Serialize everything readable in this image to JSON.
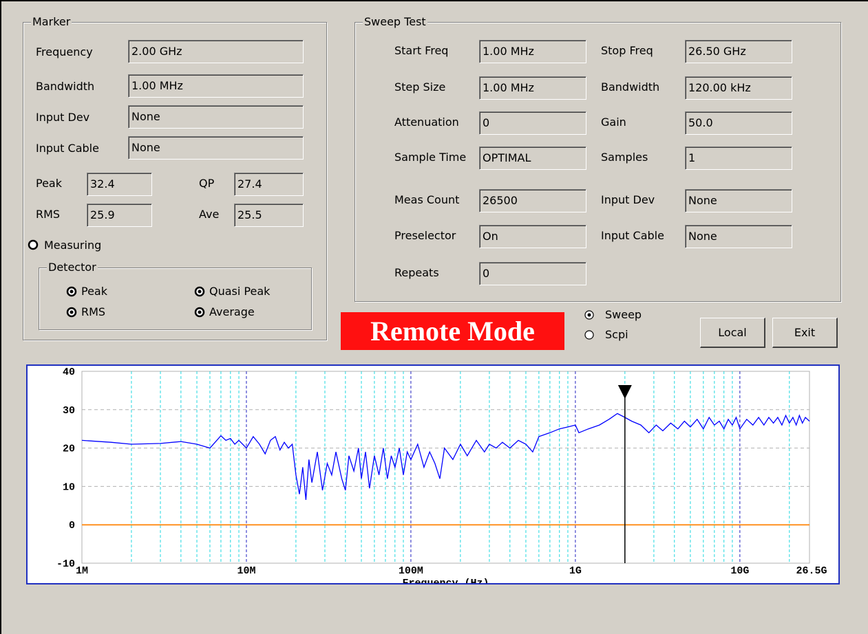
{
  "marker": {
    "title": "Marker",
    "fields": [
      {
        "label": "Frequency",
        "value": "2.00 GHz"
      },
      {
        "label": "Bandwidth",
        "value": "1.00 MHz"
      },
      {
        "label": "Input Dev",
        "value": "None"
      },
      {
        "label": "Input Cable",
        "value": "None"
      }
    ],
    "readings": [
      {
        "label": "Peak",
        "value": "32.4"
      },
      {
        "label": "QP",
        "value": "27.4"
      },
      {
        "label": "RMS",
        "value": "25.9"
      },
      {
        "label": "Ave",
        "value": "25.5"
      }
    ],
    "measuring": "Measuring",
    "detector": {
      "title": "Detector",
      "options": [
        "Peak",
        "Quasi Peak",
        "RMS",
        "Average"
      ]
    }
  },
  "sweep_test": {
    "title": "Sweep Test",
    "left": [
      {
        "label": "Start Freq",
        "value": "1.00 MHz"
      },
      {
        "label": "Step Size",
        "value": "1.00 MHz"
      },
      {
        "label": "Attenuation",
        "value": "0"
      },
      {
        "label": "Sample Time",
        "value": "OPTIMAL"
      },
      {
        "label": "Meas Count",
        "value": "26500"
      },
      {
        "label": "Preselector",
        "value": "On"
      },
      {
        "label": "Repeats",
        "value": "0"
      }
    ],
    "right": [
      {
        "label": "Stop Freq",
        "value": "26.50 GHz"
      },
      {
        "label": "Bandwidth",
        "value": "120.00 kHz"
      },
      {
        "label": "Gain",
        "value": "50.0"
      },
      {
        "label": "Samples",
        "value": "1"
      },
      {
        "label": "Input Dev",
        "value": "None"
      },
      {
        "label": "Input Cable",
        "value": "None"
      }
    ]
  },
  "remote_mode": "Remote Mode",
  "mode_options": [
    {
      "label": "Sweep",
      "selected": true
    },
    {
      "label": "Scpi",
      "selected": false
    }
  ],
  "buttons": [
    "Local",
    "Exit"
  ],
  "chart_data": {
    "type": "line",
    "xlabel": "Frequency (Hz)",
    "xscale": "log",
    "xlim": [
      1000000,
      26500000000
    ],
    "ylim": [
      -10,
      40
    ],
    "yticks": [
      -10,
      0,
      10,
      20,
      30,
      40
    ],
    "xticks": [
      {
        "value": 1000000,
        "label": "1M"
      },
      {
        "value": 10000000,
        "label": "10M"
      },
      {
        "value": 100000000,
        "label": "100M"
      },
      {
        "value": 1000000000,
        "label": "1G"
      },
      {
        "value": 10000000000,
        "label": "10G"
      },
      {
        "value": 26500000000,
        "label": "26.5G"
      }
    ],
    "x_minor_grid": [
      2000000,
      3000000,
      4000000,
      5000000,
      6000000,
      7000000,
      8000000,
      9000000,
      20000000,
      30000000,
      40000000,
      50000000,
      60000000,
      70000000,
      80000000,
      90000000,
      200000000,
      300000000,
      400000000,
      500000000,
      600000000,
      700000000,
      800000000,
      900000000,
      2000000000,
      3000000000,
      4000000000,
      5000000000,
      6000000000,
      7000000000,
      8000000000,
      9000000000,
      20000000000
    ],
    "grid": true,
    "major_grid_color": "#2020c0",
    "minor_grid_color": "#20d8e0",
    "reference_line": {
      "value": 0,
      "color": "#ff9020"
    },
    "marker_x": 2000000000,
    "color": "#0000ff",
    "x": [
      1000000,
      1500000,
      2000000,
      3000000,
      4000000,
      5000000,
      6000000,
      7000000,
      7500000,
      8000000,
      8500000,
      9000000,
      10000000,
      11000000,
      12000000,
      13000000,
      14000000,
      15000000,
      16000000,
      17000000,
      18000000,
      19000000,
      20000000,
      21000000,
      22000000,
      23000000,
      24000000,
      25000000,
      27000000,
      29000000,
      31000000,
      33000000,
      35000000,
      38000000,
      40000000,
      42000000,
      45000000,
      48000000,
      50000000,
      53000000,
      56000000,
      60000000,
      64000000,
      68000000,
      72000000,
      76000000,
      80000000,
      85000000,
      90000000,
      95000000,
      100000000,
      110000000,
      120000000,
      130000000,
      140000000,
      150000000,
      160000000,
      180000000,
      200000000,
      220000000,
      250000000,
      280000000,
      300000000,
      330000000,
      360000000,
      400000000,
      450000000,
      500000000,
      550000000,
      600000000,
      700000000,
      800000000,
      900000000,
      1000000000,
      1050000000,
      1200000000,
      1400000000,
      1600000000,
      1800000000,
      2000000000,
      2200000000,
      2500000000,
      2800000000,
      3100000000,
      3400000000,
      3800000000,
      4200000000,
      4600000000,
      5000000000,
      5500000000,
      6000000000,
      6500000000,
      7000000000,
      7500000000,
      8000000000,
      8500000000,
      9000000000,
      9500000000,
      10000000000,
      11000000000,
      12000000000,
      13000000000,
      14000000000,
      15000000000,
      16000000000,
      17000000000,
      18000000000,
      19000000000,
      20000000000,
      21000000000,
      22000000000,
      23000000000,
      24000000000,
      25000000000,
      26500000000
    ],
    "values": [
      22,
      21.5,
      21,
      21.2,
      21.7,
      21,
      20,
      23.2,
      22,
      22.5,
      21,
      22,
      20,
      23,
      21,
      18.5,
      22,
      23,
      19.5,
      21.5,
      20,
      21,
      13,
      8,
      15,
      6.5,
      17,
      11,
      19,
      9,
      16,
      13,
      19,
      12,
      9,
      18,
      14,
      20,
      12,
      19,
      9.5,
      18,
      13,
      20,
      12,
      18,
      15,
      20,
      13,
      19,
      17,
      21,
      15,
      19,
      16,
      12,
      20,
      17,
      21,
      18,
      22,
      19,
      21,
      20,
      21.5,
      20,
      22,
      21,
      19,
      23,
      24,
      25,
      25.5,
      26,
      24,
      25,
      26,
      27.5,
      29,
      28,
      27,
      26,
      24,
      26,
      24.5,
      26.5,
      25,
      27,
      25.5,
      27.5,
      25,
      28,
      26,
      27,
      25,
      27.5,
      26,
      28,
      25,
      27.5,
      26,
      28,
      26,
      28,
      26.5,
      28,
      26,
      28.5,
      26.5,
      28,
      26,
      28.5,
      26.5,
      28,
      27
    ]
  }
}
